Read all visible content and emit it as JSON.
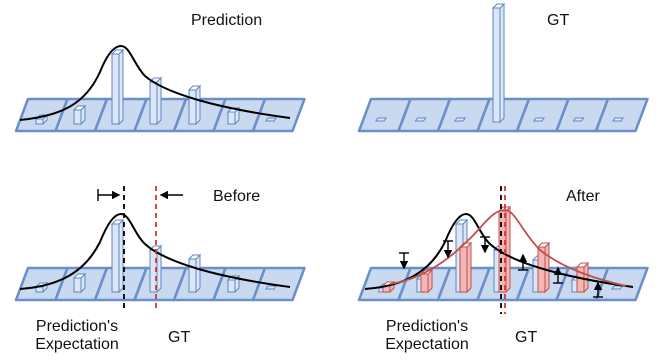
{
  "panels": {
    "prediction": {
      "title": "Prediction"
    },
    "gt": {
      "title": "GT"
    },
    "before": {
      "title": "Before",
      "expectation_label_line1": "Prediction's",
      "expectation_label_line2": "Expectation",
      "gt_label": "GT"
    },
    "after": {
      "title": "After",
      "expectation_label_line1": "Prediction's",
      "expectation_label_line2": "Expectation",
      "gt_label": "GT"
    }
  },
  "colors": {
    "bin_fill": "#c9d9f0",
    "bin_stroke": "#6b8fc9",
    "bar_fill": "#dbe7f7",
    "bar_stroke": "#5f86c2",
    "curve": "#000000",
    "gt_line": "#e03030",
    "adjusted_curve": "#c0504d",
    "adjusted_bar_fill": "#f2b8b5"
  }
}
